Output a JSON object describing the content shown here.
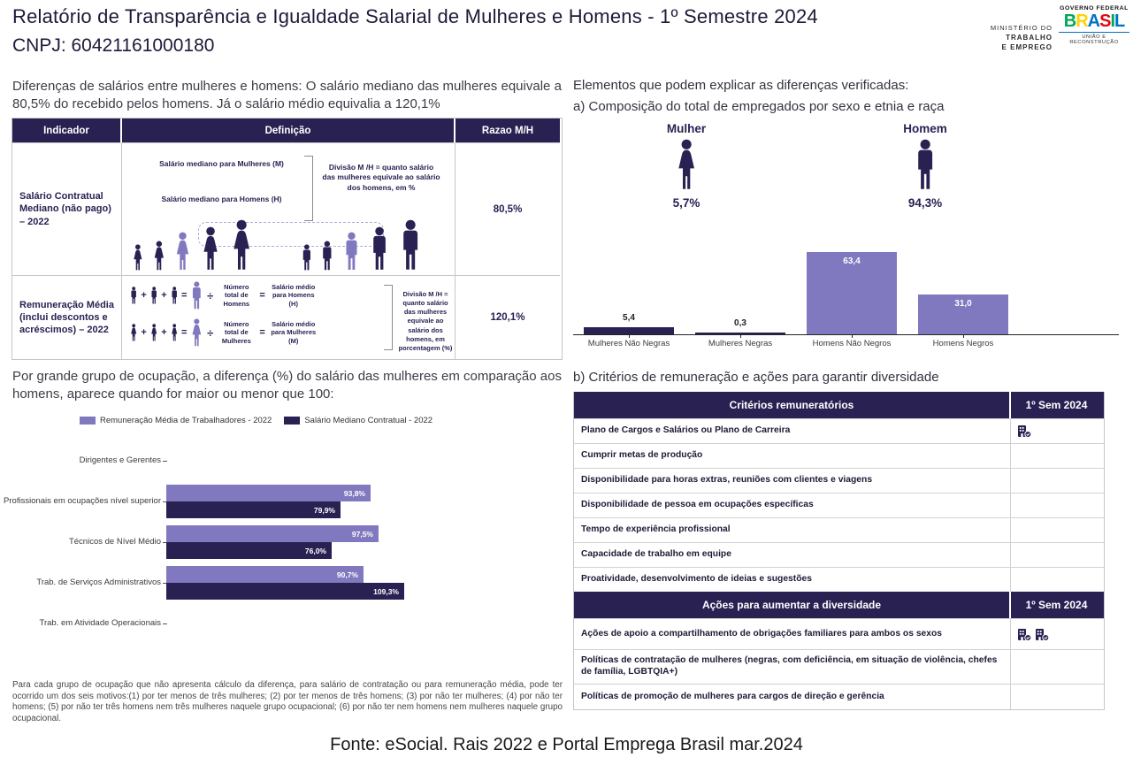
{
  "colors": {
    "dark": "#2a2153",
    "light": "#8179bf",
    "axis": "#222222"
  },
  "header": {
    "title": "Relatório de Transparência e Igualdade Salarial de Mulheres e Homens - 1º Semestre 2024",
    "cnpj": "CNPJ: 60421161000180",
    "ministry": {
      "line1": "MINISTÉRIO DO",
      "line2": "TRABALHO",
      "line3": "E EMPREGO"
    },
    "gov": {
      "top": "GOVERNO FEDERAL",
      "brand": "BRASIL",
      "bottom": "UNIÃO E RECONSTRUÇÃO",
      "letters": [
        {
          "ch": "B",
          "color": "#00a859"
        },
        {
          "ch": "R",
          "color": "#ffd400"
        },
        {
          "ch": "A",
          "color": "#0072c6"
        },
        {
          "ch": "S",
          "color": "#e30613"
        },
        {
          "ch": "I",
          "color": "#00a859"
        },
        {
          "ch": "L",
          "color": "#0072c6"
        }
      ]
    }
  },
  "left": {
    "intro": "Diferenças de salários entre mulheres e homens: O salário mediano das mulheres equivale a 80,5% do recebido pelos homens. Já o salário médio equivalia a 120,1%",
    "table": {
      "headers": [
        "Indicador",
        "Definição",
        "Razao M/H"
      ],
      "row1": {
        "indicator": "Salário Contratual Mediano (não pago) – 2022",
        "line_women": "Salário mediano para Mulheres (M)",
        "line_men": "Salário mediano para Homens (H)",
        "note": "Divisão M /H = quanto salário das mulheres equivale ao salário dos homens, em %",
        "ratio": "80,5%",
        "pictogram": {
          "sizes": [
            30,
            34,
            44,
            50,
            58
          ],
          "highlight_index": 2
        }
      },
      "row2": {
        "indicator": "Remuneração Média (inclui descontos e acréscimos) – 2022",
        "men_total": "Número total de Homens",
        "men_avg": "Salário médio para Homens (H)",
        "women_total": "Número total de Mulheres",
        "women_avg": "Salário médio para Mulheres (M)",
        "note": "Divisão M /H = quanto salário das mulheres equivale ao salário dos homens, em porcentagem (%)",
        "ratio": "120,1%"
      }
    },
    "occupation": {
      "intro": "Por grande grupo de ocupação, a diferença (%) do salário das mulheres em comparação aos homens, aparece quando for maior ou menor que 100:",
      "footnote": "Para cada grupo de ocupação que não apresenta cálculo da diferença, para salário de contratação ou para remuneração média, pode ter ocorrido um dos seis motivos:(1) por ter menos de três mulheres; (2) por ter menos de três homens; (3) por não ter mulheres; (4) por não ter homens; (5) por não ter três homens nem três mulheres naquele grupo ocupacional; (6) por não ter nem homens nem mulheres naquele grupo ocupacional."
    }
  },
  "right": {
    "elements_title": "Elementos que podem explicar as diferenças verificadas:",
    "section_a_title": "a) Composição do total de empregados por sexo e etnia e raça",
    "mulher": {
      "label": "Mulher",
      "pct": "5,7%"
    },
    "homem": {
      "label": "Homem",
      "pct": "94,3%"
    },
    "section_b_title": "b) Critérios de remuneração e ações para garantir diversidade",
    "criteria": {
      "header": [
        "Critérios remuneratórios",
        "1º Sem 2024"
      ],
      "rows": [
        {
          "label": "Plano de Cargos e Salários ou Plano de Carreira",
          "icons": 1
        },
        {
          "label": "Cumprir metas de produção",
          "icons": 0
        },
        {
          "label": "Disponibilidade para horas extras, reuniões com clientes e viagens",
          "icons": 0
        },
        {
          "label": "Disponibilidade de pessoa em ocupações específicas",
          "icons": 0
        },
        {
          "label": "Tempo de experiência profissional",
          "icons": 0
        },
        {
          "label": "Capacidade de trabalho em equipe",
          "icons": 0
        },
        {
          "label": "Proatividade, desenvolvimento de ideias e sugestões",
          "icons": 0
        }
      ]
    },
    "actions": {
      "header": [
        "Ações para aumentar a diversidade",
        "1º Sem 2024"
      ],
      "rows": [
        {
          "label": "Ações de apoio a compartilhamento de obrigações familiares para ambos os sexos",
          "icons": 2
        },
        {
          "label": "Políticas de contratação de mulheres (negras, com deficiência, em situação de violência, chefes de família, LGBTQIA+)",
          "icons": 0
        },
        {
          "label": "Políticas de promoção de mulheres para cargos de direção e gerência",
          "icons": 0
        }
      ]
    }
  },
  "fonte": "Fonte: eSocial. Rais 2022 e Portal Emprega Brasil mar.2024",
  "chart_data": [
    {
      "id": "composition-by-sex-race",
      "type": "bar",
      "title": "a) Composição do total de empregados por sexo e etnia e raça",
      "categories": [
        "Mulheres Não Negras",
        "Mulheres Negras",
        "Homens Não Negros",
        "Homens Negros"
      ],
      "values": [
        5.4,
        0.3,
        63.4,
        31.0
      ],
      "value_labels": [
        "5,4",
        "0,3",
        "63,4",
        "31,0"
      ],
      "groups": [
        "women",
        "women",
        "men",
        "men"
      ],
      "label_inside": [
        false,
        false,
        true,
        true
      ],
      "summary": {
        "mulher_pct": 5.7,
        "homem_pct": 94.3
      },
      "ylim": [
        0,
        70
      ],
      "unit": "% of employees",
      "grid": false,
      "legend": "none"
    },
    {
      "id": "occupation-wage-ratio",
      "type": "bar-horizontal-grouped",
      "categories": [
        "Dirigentes e Gerentes",
        "Profissionais em ocupações nível superior",
        "Técnicos de Nível Médio",
        "Trab. de Serviços Administrativos",
        "Trab. em Atividade Operacionais"
      ],
      "series": [
        {
          "name": "Remuneração Média de Trabalhadores - 2022",
          "color": "#8179bf",
          "values": [
            null,
            93.8,
            97.5,
            90.7,
            null
          ],
          "value_labels": [
            null,
            "93,8%",
            "97,5%",
            "90,7%",
            null
          ]
        },
        {
          "name": "Salário Mediano Contratual - 2022",
          "color": "#2a2153",
          "values": [
            null,
            79.9,
            76.0,
            109.3,
            null
          ],
          "value_labels": [
            null,
            "79,9%",
            "76,0%",
            "109,3%",
            null
          ]
        }
      ],
      "xlim": [
        0,
        120
      ],
      "grid": false,
      "legend": "top"
    }
  ]
}
